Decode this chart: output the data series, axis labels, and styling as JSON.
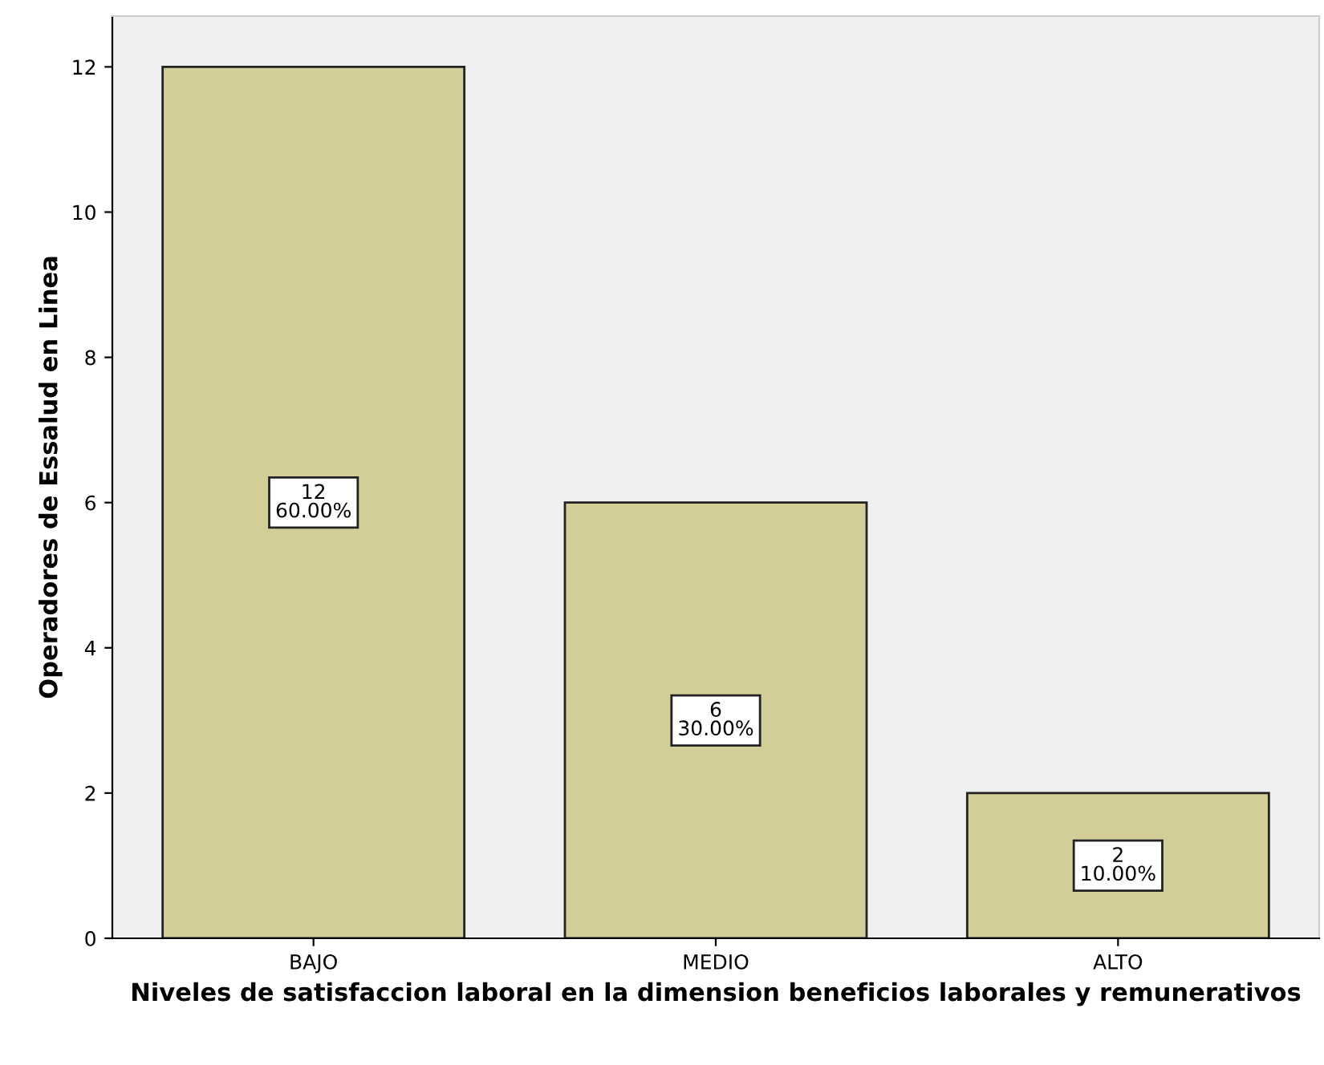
{
  "chart_data": {
    "type": "bar",
    "xlabel": "Niveles de satisfaccion laboral en la dimension beneficios laborales y remunerativos",
    "ylabel": "Operadores de Essalud en Linea",
    "categories": [
      "BAJO",
      "MEDIO",
      "ALTO"
    ],
    "values": [
      12,
      6,
      2
    ],
    "color": "#d3ce98",
    "value_labels": [
      "12\n60.00%",
      "6\n30.00%",
      "2\n10.00%"
    ],
    "ylim": [
      0,
      12.7
    ],
    "yticks": [
      0,
      2,
      4,
      6,
      8,
      10,
      12
    ],
    "grid": false,
    "legend": false
  }
}
